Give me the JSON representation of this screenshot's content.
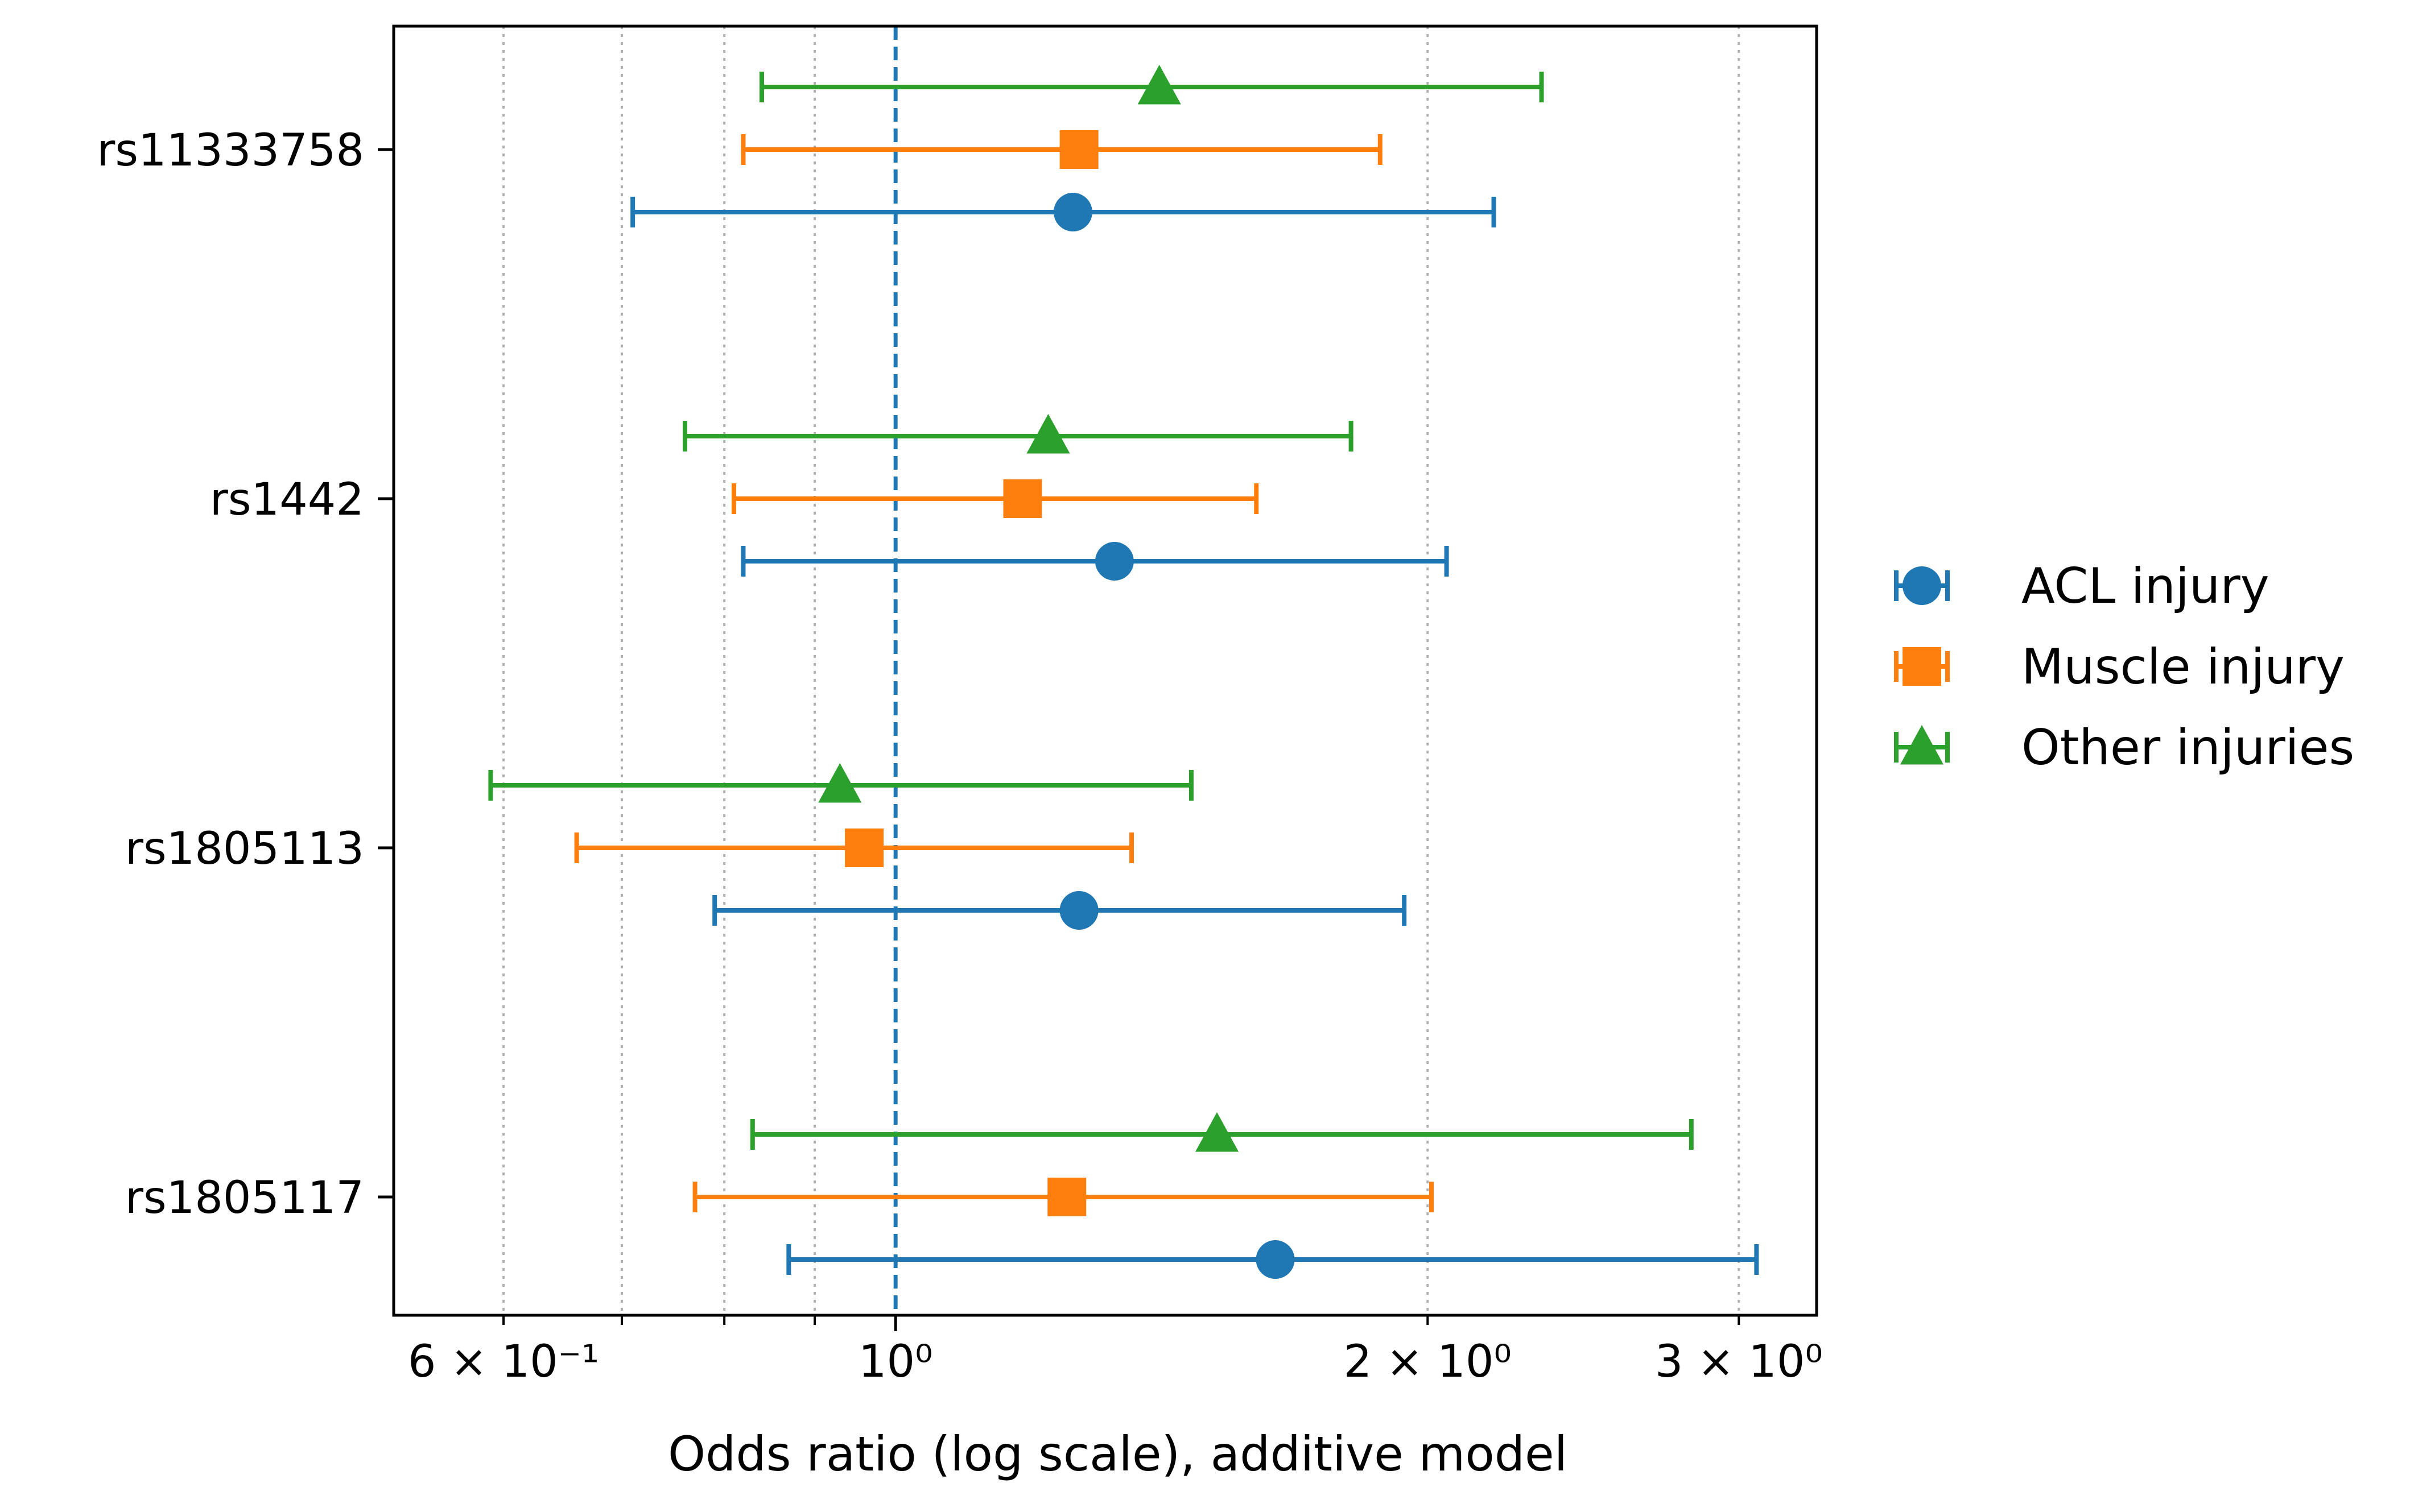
{
  "chart_data": {
    "type": "forest",
    "title": "",
    "xlabel": "Odds ratio (log scale), additive model",
    "ylabel": "",
    "xscale": "log",
    "xlim": [
      0.52,
      3.32
    ],
    "reference_line": 1.0,
    "grid": "vertical dotted",
    "legend_position": "outside-right",
    "categories": [
      "rs11333758",
      "rs1442",
      "rs1805113",
      "rs1805117"
    ],
    "x_ticks": [
      {
        "value": 0.6,
        "label": "6 × 10⁻¹"
      },
      {
        "value": 1.0,
        "label": "10⁰"
      },
      {
        "value": 2.0,
        "label": "2 × 10⁰"
      },
      {
        "value": 3.0,
        "label": "3 × 10⁰"
      }
    ],
    "minor_ticks": [
      0.6,
      0.7,
      0.8,
      0.9,
      2.0,
      3.0
    ],
    "series": [
      {
        "name": "ACL injury",
        "color": "#1f77b4",
        "marker": "circle",
        "points": [
          {
            "category": "rs11333758",
            "or": 1.26,
            "lo": 0.71,
            "hi": 2.18
          },
          {
            "category": "rs1442",
            "or": 1.33,
            "lo": 0.82,
            "hi": 2.05
          },
          {
            "category": "rs1805113",
            "or": 1.27,
            "lo": 0.79,
            "hi": 1.94
          },
          {
            "category": "rs1805117",
            "or": 1.64,
            "lo": 0.87,
            "hi": 3.07
          }
        ]
      },
      {
        "name": "Muscle injury",
        "color": "#ff7f0e",
        "marker": "square",
        "points": [
          {
            "category": "rs11333758",
            "or": 1.27,
            "lo": 0.82,
            "hi": 1.88
          },
          {
            "category": "rs1442",
            "or": 1.18,
            "lo": 0.81,
            "hi": 1.6
          },
          {
            "category": "rs1805113",
            "or": 0.96,
            "lo": 0.66,
            "hi": 1.36
          },
          {
            "category": "rs1805117",
            "or": 1.25,
            "lo": 0.77,
            "hi": 2.01
          }
        ]
      },
      {
        "name": "Other injuries",
        "color": "#2ca02c",
        "marker": "triangle",
        "points": [
          {
            "category": "rs11333758",
            "or": 1.41,
            "lo": 0.84,
            "hi": 2.32
          },
          {
            "category": "rs1442",
            "or": 1.22,
            "lo": 0.76,
            "hi": 1.81
          },
          {
            "category": "rs1805113",
            "or": 0.93,
            "lo": 0.59,
            "hi": 1.47
          },
          {
            "category": "rs1805117",
            "or": 1.52,
            "lo": 0.83,
            "hi": 2.82
          }
        ]
      }
    ]
  }
}
